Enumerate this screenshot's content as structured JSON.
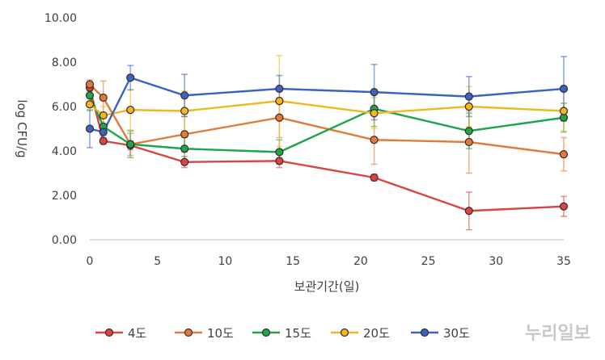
{
  "chart_data": {
    "type": "line",
    "title": "",
    "xlabel": "보관기간(일)",
    "ylabel": "log CFU/g",
    "xlim": [
      0,
      35
    ],
    "ylim": [
      0,
      10
    ],
    "x_ticks": [
      "0",
      "5",
      "10",
      "15",
      "20",
      "25",
      "30",
      "35"
    ],
    "y_ticks": [
      "0.00",
      "2.00",
      "4.00",
      "6.00",
      "8.00",
      "10.00"
    ],
    "grid": false,
    "legend_position": "bottom",
    "series": [
      {
        "name": "4도",
        "color": "#d94545",
        "points": [
          {
            "x": 0,
            "y": 6.85,
            "err": 0.15
          },
          {
            "x": 1,
            "y": 4.45,
            "err": 0.15
          },
          {
            "x": 3,
            "y": 4.25,
            "err": 0.2
          },
          {
            "x": 7,
            "y": 3.5,
            "err": 0.25
          },
          {
            "x": 14,
            "y": 3.55,
            "err": 0.3
          },
          {
            "x": 21,
            "y": 2.8,
            "err": 0.15
          },
          {
            "x": 28,
            "y": 1.3,
            "err": 0.85
          },
          {
            "x": 35,
            "y": 1.5,
            "err": 0.45
          }
        ]
      },
      {
        "name": "10도",
        "color": "#e07b39",
        "points": [
          {
            "x": 0,
            "y": 7.0,
            "err": 0.2
          },
          {
            "x": 1,
            "y": 6.4,
            "err": 0.75
          },
          {
            "x": 3,
            "y": 4.3,
            "err": 0.5
          },
          {
            "x": 7,
            "y": 4.75,
            "err": 0.8
          },
          {
            "x": 14,
            "y": 5.5,
            "err": 0.9
          },
          {
            "x": 21,
            "y": 4.5,
            "err": 1.1
          },
          {
            "x": 28,
            "y": 4.4,
            "err": 1.4
          },
          {
            "x": 35,
            "y": 3.85,
            "err": 0.75
          }
        ]
      },
      {
        "name": "15도",
        "color": "#1ca64a",
        "points": [
          {
            "x": 0,
            "y": 6.5,
            "err": 0.3
          },
          {
            "x": 1,
            "y": 5.1,
            "err": 0.4
          },
          {
            "x": 3,
            "y": 4.3,
            "err": 0.6
          },
          {
            "x": 7,
            "y": 4.1,
            "err": 0.5
          },
          {
            "x": 14,
            "y": 3.95,
            "err": 0.55
          },
          {
            "x": 21,
            "y": 5.9,
            "err": 0.8
          },
          {
            "x": 28,
            "y": 4.9,
            "err": 0.8
          },
          {
            "x": 35,
            "y": 5.5,
            "err": 0.65
          }
        ]
      },
      {
        "name": "20도",
        "color": "#f0b820",
        "points": [
          {
            "x": 0,
            "y": 6.1,
            "err": 0.3
          },
          {
            "x": 1,
            "y": 5.6,
            "err": 0.4
          },
          {
            "x": 3,
            "y": 5.85,
            "err": 0.9
          },
          {
            "x": 7,
            "y": 5.8,
            "err": 0.9
          },
          {
            "x": 14,
            "y": 6.25,
            "err": 2.05
          },
          {
            "x": 21,
            "y": 5.7,
            "err": 0.7
          },
          {
            "x": 28,
            "y": 6.0,
            "err": 0.9
          },
          {
            "x": 35,
            "y": 5.8,
            "err": 0.9
          }
        ]
      },
      {
        "name": "30도",
        "color": "#3b63c4",
        "points": [
          {
            "x": 0,
            "y": 5.0,
            "err": 0.85
          },
          {
            "x": 1,
            "y": 4.85,
            "err": 0.3
          },
          {
            "x": 3,
            "y": 7.3,
            "err": 0.55
          },
          {
            "x": 7,
            "y": 6.5,
            "err": 0.95
          },
          {
            "x": 14,
            "y": 6.8,
            "err": 0.6
          },
          {
            "x": 21,
            "y": 6.65,
            "err": 1.25
          },
          {
            "x": 28,
            "y": 6.45,
            "err": 0.9
          },
          {
            "x": 35,
            "y": 6.8,
            "err": 1.45
          }
        ]
      }
    ]
  },
  "watermark": "누리일보"
}
